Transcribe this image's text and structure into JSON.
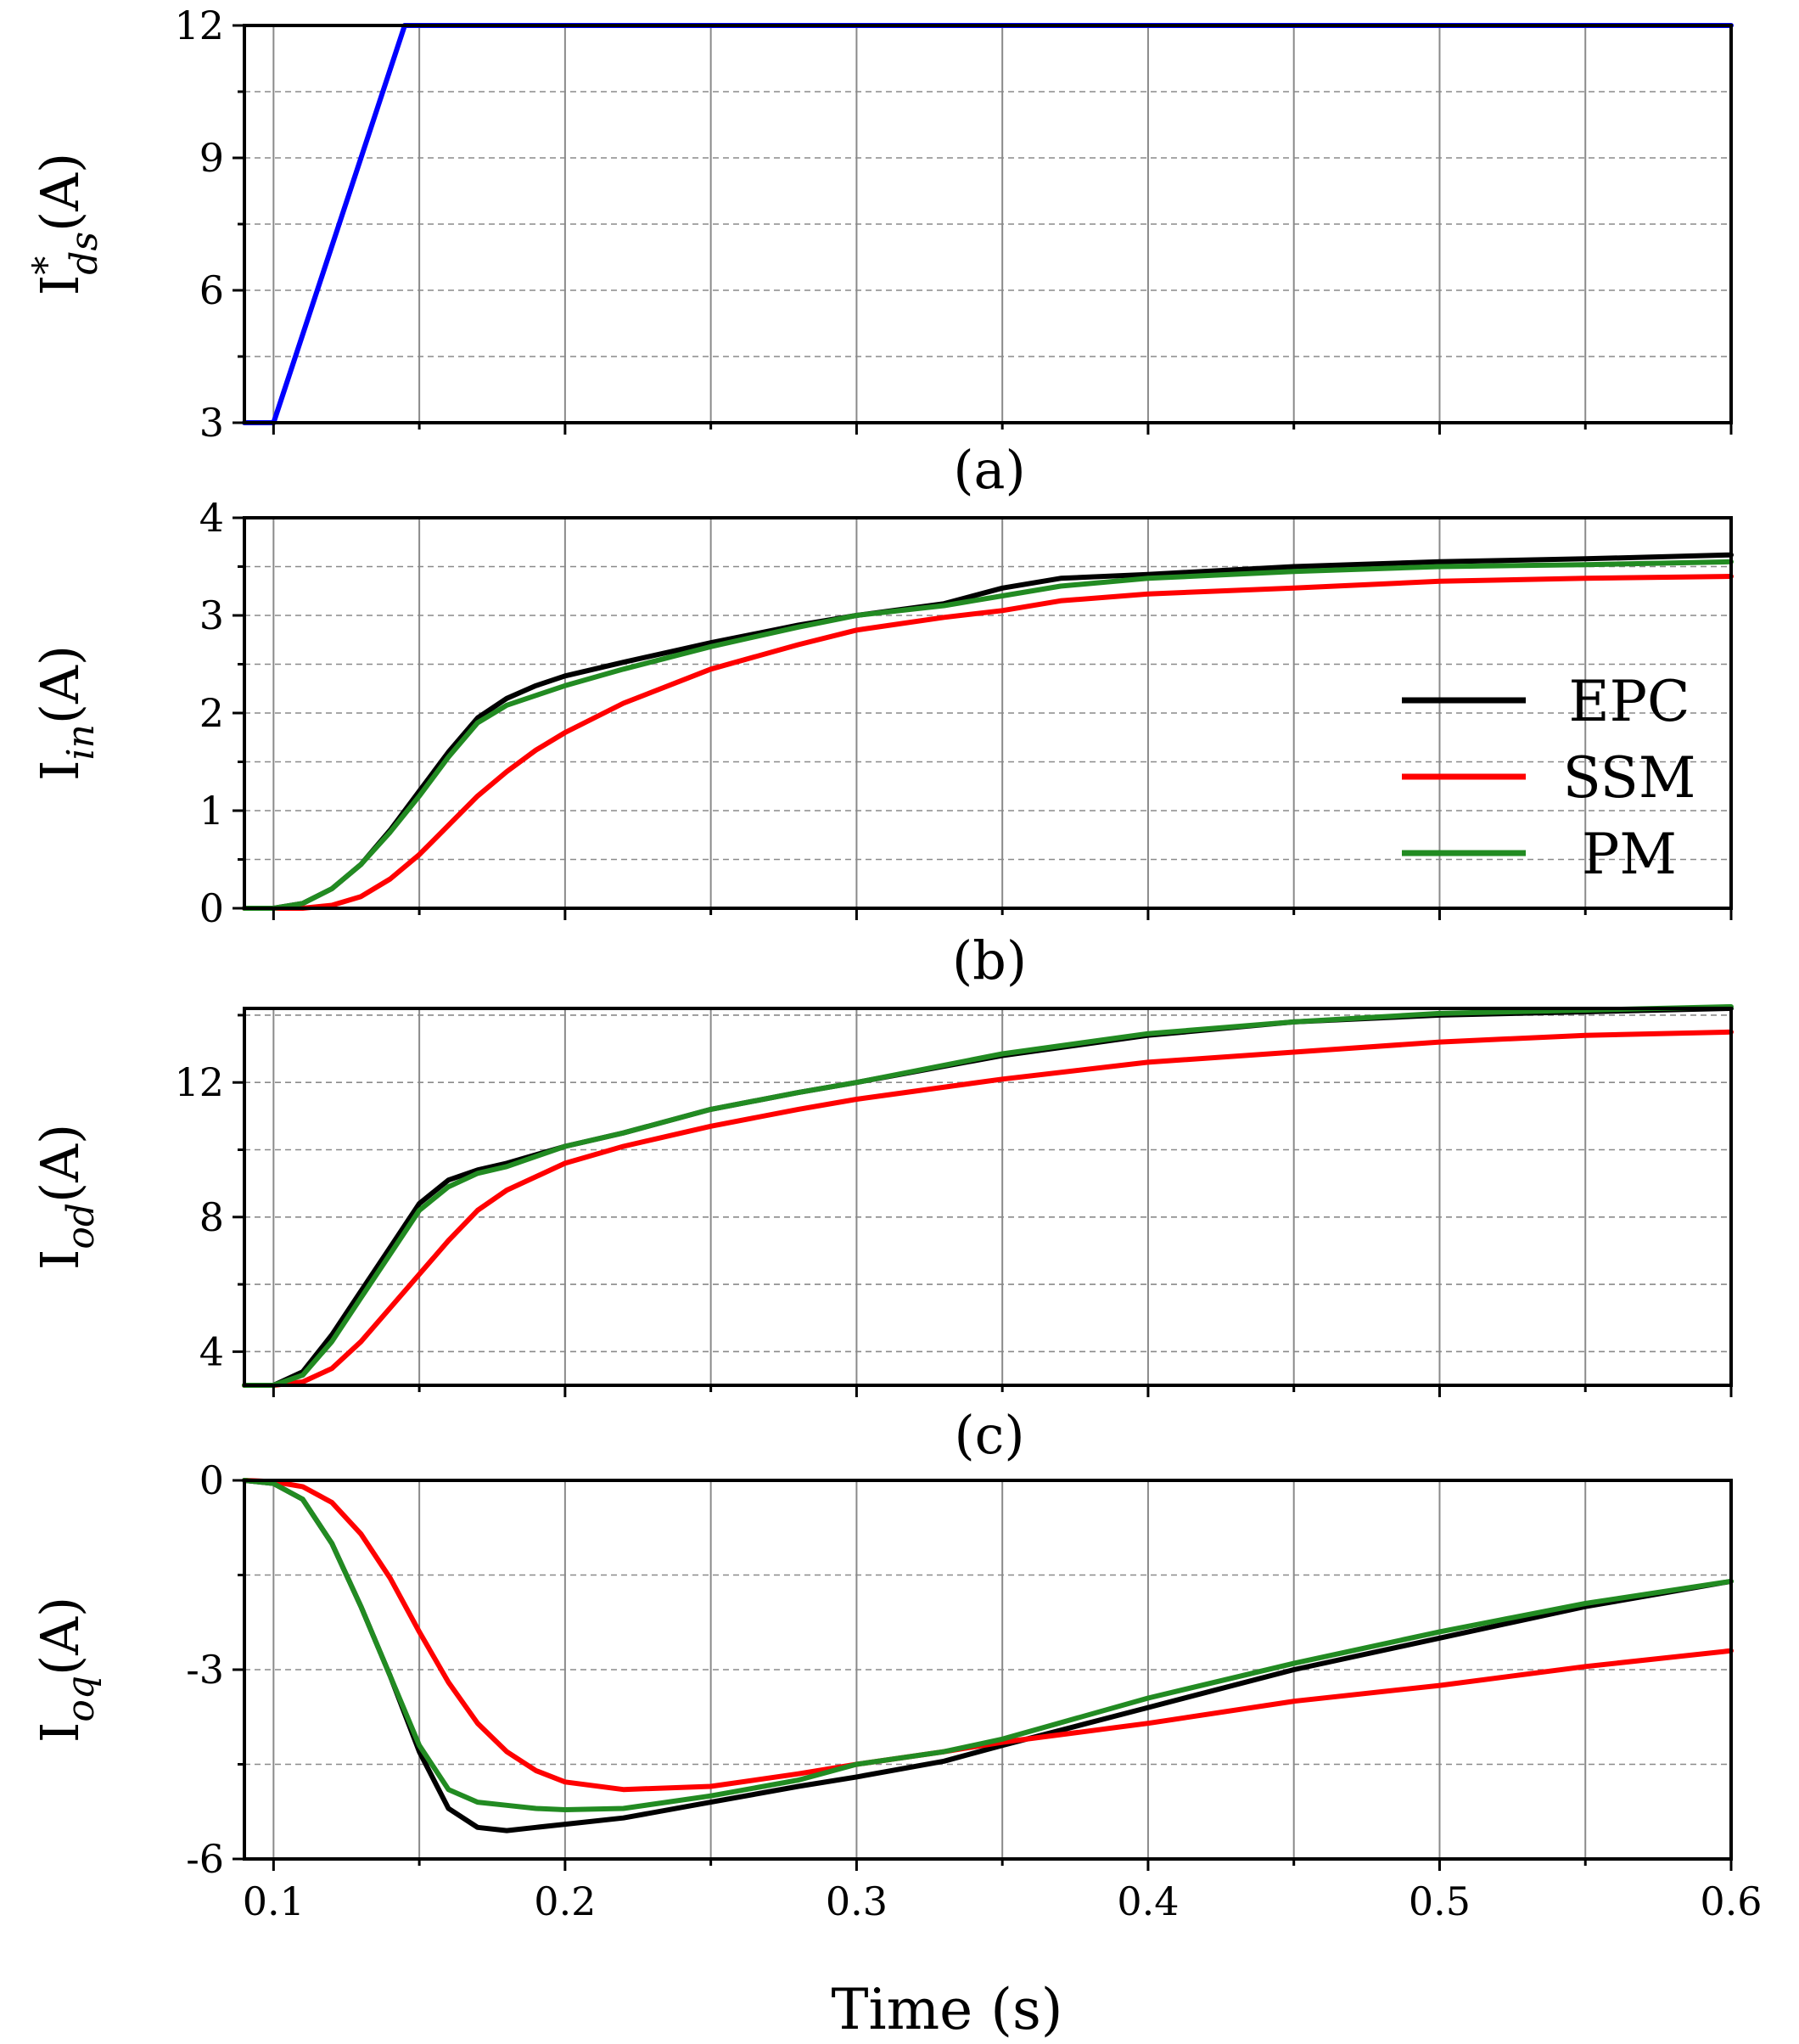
{
  "chart_data": {
    "type": "line",
    "colors": {
      "EPC": "#000000",
      "SSM": "#ff0000",
      "PM": "#228b22",
      "reference": "#0000ff"
    },
    "x_axis": {
      "label": "Time (s)",
      "range": [
        0.09,
        0.6
      ],
      "ticks": [
        0.1,
        0.2,
        0.3,
        0.4,
        0.5,
        0.6
      ],
      "tick_labels": [
        "0.1",
        "0.2",
        "0.3",
        "0.4",
        "0.5",
        "0.6"
      ]
    },
    "legend": {
      "position": "middle-right of panel (b)",
      "entries": [
        "EPC",
        "SSM",
        "PM"
      ]
    },
    "panels": [
      {
        "id": "a",
        "caption": "(a)",
        "ylabel": {
          "base": "I",
          "sup": "*",
          "sub": "ds",
          "unit": "(A)"
        },
        "ylim": [
          3,
          12
        ],
        "yticks": [
          3,
          6,
          9,
          12
        ],
        "ytick_labels": [
          "3",
          "6",
          "9",
          "12"
        ],
        "minor_yticks": [
          4.5,
          7.5,
          10.5
        ],
        "series": [
          {
            "name": "I*ds",
            "color": "#0000ff",
            "x": [
              0.09,
              0.1,
              0.145,
              0.6
            ],
            "y": [
              3,
              3,
              12,
              12
            ]
          }
        ]
      },
      {
        "id": "b",
        "caption": "(b)",
        "ylabel": {
          "base": "I",
          "sup": "",
          "sub": "in",
          "unit": "(A)"
        },
        "ylim": [
          0,
          4
        ],
        "yticks": [
          0,
          1,
          2,
          3,
          4
        ],
        "ytick_labels": [
          "0",
          "1",
          "2",
          "3",
          "4"
        ],
        "minor_yticks": [
          0.5,
          1.5,
          2.5,
          3.5
        ],
        "series": [
          {
            "name": "EPC",
            "color": "#000000",
            "x": [
              0.09,
              0.1,
              0.11,
              0.12,
              0.13,
              0.14,
              0.15,
              0.16,
              0.17,
              0.18,
              0.19,
              0.2,
              0.22,
              0.25,
              0.28,
              0.3,
              0.33,
              0.35,
              0.37,
              0.4,
              0.45,
              0.5,
              0.55,
              0.6
            ],
            "y": [
              0,
              0,
              0.05,
              0.2,
              0.45,
              0.8,
              1.2,
              1.6,
              1.95,
              2.15,
              2.28,
              2.38,
              2.52,
              2.72,
              2.9,
              3.0,
              3.12,
              3.28,
              3.38,
              3.42,
              3.5,
              3.55,
              3.58,
              3.62
            ]
          },
          {
            "name": "SSM",
            "color": "#ff0000",
            "x": [
              0.09,
              0.1,
              0.11,
              0.12,
              0.13,
              0.14,
              0.15,
              0.16,
              0.17,
              0.18,
              0.19,
              0.2,
              0.22,
              0.25,
              0.28,
              0.3,
              0.33,
              0.35,
              0.37,
              0.4,
              0.45,
              0.5,
              0.55,
              0.6
            ],
            "y": [
              0,
              0,
              0,
              0.03,
              0.12,
              0.3,
              0.55,
              0.85,
              1.15,
              1.4,
              1.62,
              1.8,
              2.1,
              2.45,
              2.7,
              2.85,
              2.98,
              3.05,
              3.15,
              3.22,
              3.28,
              3.35,
              3.38,
              3.4
            ]
          },
          {
            "name": "PM",
            "color": "#228b22",
            "x": [
              0.09,
              0.1,
              0.11,
              0.12,
              0.13,
              0.14,
              0.15,
              0.16,
              0.17,
              0.18,
              0.19,
              0.2,
              0.22,
              0.25,
              0.28,
              0.3,
              0.33,
              0.35,
              0.37,
              0.4,
              0.45,
              0.5,
              0.55,
              0.6
            ],
            "y": [
              0,
              0,
              0.05,
              0.2,
              0.45,
              0.78,
              1.15,
              1.55,
              1.9,
              2.08,
              2.18,
              2.28,
              2.45,
              2.68,
              2.88,
              3.0,
              3.1,
              3.2,
              3.3,
              3.38,
              3.45,
              3.5,
              3.52,
              3.55
            ]
          }
        ]
      },
      {
        "id": "c",
        "caption": "(c)",
        "ylabel": {
          "base": "I",
          "sup": "",
          "sub": "od",
          "unit": "(A)"
        },
        "ylim": [
          3,
          14.2
        ],
        "yticks": [
          4,
          8,
          12
        ],
        "ytick_labels": [
          "4",
          "8",
          "12"
        ],
        "minor_yticks": [
          6,
          10,
          14
        ],
        "series": [
          {
            "name": "EPC",
            "color": "#000000",
            "x": [
              0.09,
              0.1,
              0.11,
              0.12,
              0.13,
              0.14,
              0.15,
              0.16,
              0.17,
              0.18,
              0.2,
              0.22,
              0.25,
              0.28,
              0.3,
              0.35,
              0.4,
              0.45,
              0.5,
              0.55,
              0.6
            ],
            "y": [
              3,
              3,
              3.4,
              4.5,
              5.8,
              7.1,
              8.4,
              9.1,
              9.4,
              9.6,
              10.1,
              10.5,
              11.2,
              11.7,
              12.0,
              12.8,
              13.4,
              13.8,
              14.0,
              14.1,
              14.2
            ]
          },
          {
            "name": "SSM",
            "color": "#ff0000",
            "x": [
              0.09,
              0.1,
              0.11,
              0.12,
              0.13,
              0.14,
              0.15,
              0.16,
              0.17,
              0.18,
              0.2,
              0.22,
              0.25,
              0.28,
              0.3,
              0.35,
              0.4,
              0.45,
              0.5,
              0.55,
              0.6
            ],
            "y": [
              3,
              3,
              3.1,
              3.5,
              4.3,
              5.3,
              6.3,
              7.3,
              8.2,
              8.8,
              9.6,
              10.1,
              10.7,
              11.2,
              11.5,
              12.1,
              12.6,
              12.9,
              13.2,
              13.4,
              13.5
            ]
          },
          {
            "name": "PM",
            "color": "#228b22",
            "x": [
              0.09,
              0.1,
              0.11,
              0.12,
              0.13,
              0.14,
              0.15,
              0.16,
              0.17,
              0.18,
              0.2,
              0.22,
              0.25,
              0.28,
              0.3,
              0.35,
              0.4,
              0.45,
              0.5,
              0.55,
              0.6
            ],
            "y": [
              3,
              3,
              3.3,
              4.3,
              5.6,
              6.9,
              8.2,
              8.9,
              9.3,
              9.5,
              10.1,
              10.5,
              11.2,
              11.7,
              12.0,
              12.85,
              13.45,
              13.8,
              14.05,
              14.15,
              14.25
            ]
          }
        ]
      },
      {
        "id": "d",
        "caption": "",
        "ylabel": {
          "base": "I",
          "sup": "",
          "sub": "oq",
          "unit": "(A)"
        },
        "ylim": [
          -6,
          0
        ],
        "yticks": [
          -6,
          -3,
          0
        ],
        "ytick_labels": [
          "-6",
          "-3",
          "0"
        ],
        "minor_yticks": [
          -4.5,
          -1.5
        ],
        "series": [
          {
            "name": "EPC",
            "color": "#000000",
            "x": [
              0.09,
              0.1,
              0.11,
              0.12,
              0.13,
              0.14,
              0.15,
              0.16,
              0.17,
              0.18,
              0.19,
              0.2,
              0.22,
              0.25,
              0.28,
              0.3,
              0.33,
              0.35,
              0.4,
              0.45,
              0.5,
              0.55,
              0.6
            ],
            "y": [
              0,
              -0.05,
              -0.3,
              -1.0,
              -2.0,
              -3.1,
              -4.3,
              -5.2,
              -5.5,
              -5.55,
              -5.5,
              -5.45,
              -5.35,
              -5.1,
              -4.85,
              -4.7,
              -4.45,
              -4.2,
              -3.6,
              -3.0,
              -2.5,
              -2.0,
              -1.6
            ]
          },
          {
            "name": "SSM",
            "color": "#ff0000",
            "x": [
              0.09,
              0.1,
              0.11,
              0.12,
              0.13,
              0.14,
              0.15,
              0.16,
              0.17,
              0.18,
              0.19,
              0.2,
              0.22,
              0.25,
              0.28,
              0.3,
              0.33,
              0.35,
              0.4,
              0.45,
              0.5,
              0.55,
              0.6
            ],
            "y": [
              0,
              -0.02,
              -0.1,
              -0.35,
              -0.85,
              -1.55,
              -2.4,
              -3.2,
              -3.85,
              -4.3,
              -4.6,
              -4.78,
              -4.9,
              -4.85,
              -4.65,
              -4.5,
              -4.3,
              -4.15,
              -3.85,
              -3.5,
              -3.25,
              -2.95,
              -2.7
            ]
          },
          {
            "name": "PM",
            "color": "#228b22",
            "x": [
              0.09,
              0.1,
              0.11,
              0.12,
              0.13,
              0.14,
              0.15,
              0.16,
              0.17,
              0.18,
              0.19,
              0.2,
              0.22,
              0.25,
              0.28,
              0.3,
              0.33,
              0.35,
              0.4,
              0.45,
              0.5,
              0.55,
              0.6
            ],
            "y": [
              0,
              -0.05,
              -0.3,
              -1.0,
              -2.0,
              -3.1,
              -4.2,
              -4.9,
              -5.1,
              -5.15,
              -5.2,
              -5.22,
              -5.2,
              -5.0,
              -4.75,
              -4.5,
              -4.3,
              -4.1,
              -3.45,
              -2.9,
              -2.4,
              -1.95,
              -1.6
            ]
          }
        ]
      }
    ]
  }
}
